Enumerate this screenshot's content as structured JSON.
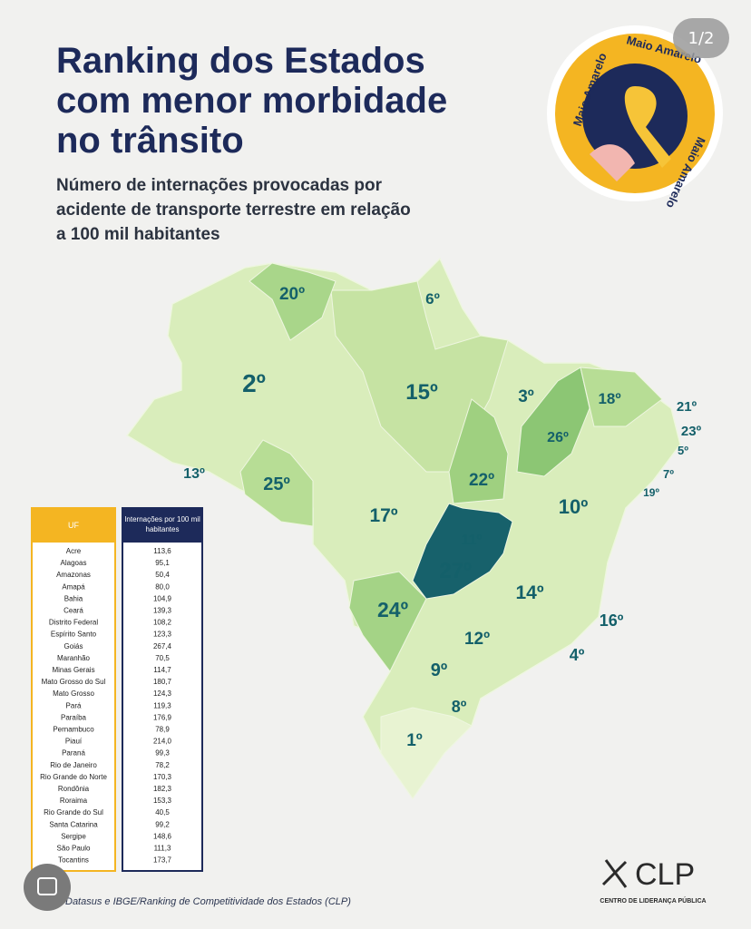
{
  "header": {
    "title_lines": [
      "Ranking dos Estados",
      "com menor morbidade",
      "no trânsito"
    ],
    "subtitle_lines": [
      "Número de internações provocadas por",
      "acidente de transporte terrestre em relação",
      "a 100 mil habitantes"
    ]
  },
  "page_indicator": "1/2",
  "badge": {
    "texts": [
      "Maio Amarelo",
      "Maio Amarelo",
      "Maio Amarelo"
    ]
  },
  "map": {
    "labels": [
      "20º",
      "6º",
      "2º",
      "15º",
      "3º",
      "18º",
      "21º",
      "23º",
      "5º",
      "13º",
      "25º",
      "26º",
      "7º",
      "19º",
      "22º",
      "10º",
      "17º",
      "11º",
      "27º",
      "14º",
      "24º",
      "16º",
      "12º",
      "4º",
      "9º",
      "8º",
      "1º"
    ]
  },
  "table": {
    "headers": [
      "UF",
      "Internações por 100 mil habitantes"
    ],
    "rows": [
      [
        "Acre",
        "113,6"
      ],
      [
        "Alagoas",
        "95,1"
      ],
      [
        "Amazonas",
        "50,4"
      ],
      [
        "Amapá",
        "80,0"
      ],
      [
        "Bahia",
        "104,9"
      ],
      [
        "Ceará",
        "139,3"
      ],
      [
        "Distrito Federal",
        "108,2"
      ],
      [
        "Espírito Santo",
        "123,3"
      ],
      [
        "Goiás",
        "267,4"
      ],
      [
        "Maranhão",
        "70,5"
      ],
      [
        "Minas Gerais",
        "114,7"
      ],
      [
        "Mato Grosso do Sul",
        "180,7"
      ],
      [
        "Mato Grosso",
        "124,3"
      ],
      [
        "Pará",
        "119,3"
      ],
      [
        "Paraíba",
        "176,9"
      ],
      [
        "Pernambuco",
        "78,9"
      ],
      [
        "Piauí",
        "214,0"
      ],
      [
        "Paraná",
        "99,3"
      ],
      [
        "Rio de Janeiro",
        "78,2"
      ],
      [
        "Rio Grande do Norte",
        "170,3"
      ],
      [
        "Rondônia",
        "182,3"
      ],
      [
        "Roraima",
        "153,3"
      ],
      [
        "Rio Grande do Sul",
        "40,5"
      ],
      [
        "Santa Catarina",
        "99,2"
      ],
      [
        "Sergipe",
        "148,6"
      ],
      [
        "São Paulo",
        "111,3"
      ],
      [
        "Tocantins",
        "173,7"
      ]
    ]
  },
  "source": "Datasus e IBGE/Ranking de Competitividade dos Estados (CLP)",
  "logo": {
    "name": "CLP",
    "tagline": "CENTRO DE LIDERANÇA PÚBLICA"
  }
}
